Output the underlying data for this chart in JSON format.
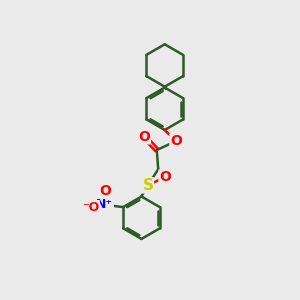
{
  "background_color": "#eaeaea",
  "bond_color": "#2d5a27",
  "bond_width": 1.8,
  "atom_colors": {
    "O": "#ff0000",
    "S": "#cccc00",
    "N_plus": "#0000ff",
    "O_minus": "#ff0000"
  },
  "figsize": [
    3.0,
    3.0
  ],
  "dpi": 100
}
